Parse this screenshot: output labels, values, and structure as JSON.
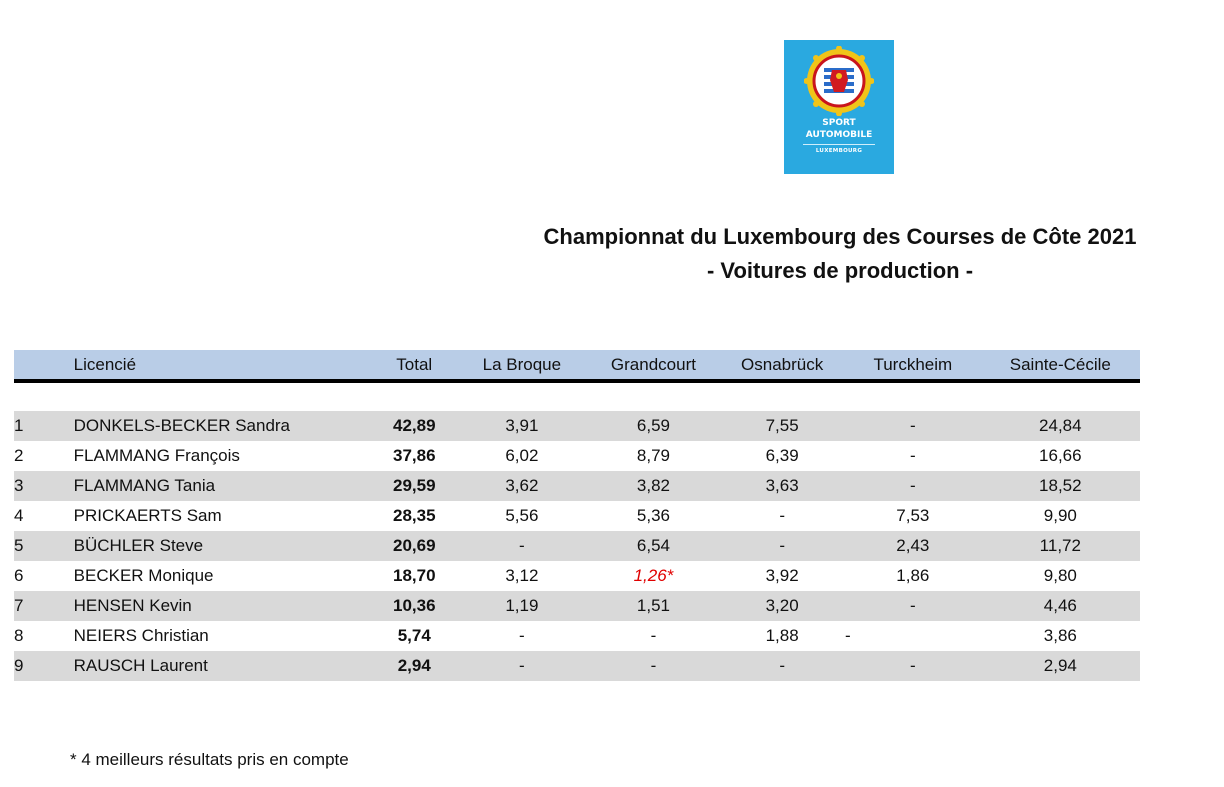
{
  "logo": {
    "line1": "SPORT",
    "line2": "AUTOMOBILE",
    "line3": "LUXEMBOURG"
  },
  "title": {
    "line1": "Championnat du Luxembourg des Courses de Côte 2021",
    "line2": "- Voitures de production -"
  },
  "table": {
    "headers": {
      "rank": "",
      "name": "Licencié",
      "total": "Total",
      "la_broque": "La Broque",
      "grandcourt": "Grandcourt",
      "osnabruck": "Osnabrück",
      "turckheim": "Turckheim",
      "sainte_cecile": "Sainte-Cécile"
    },
    "rows": [
      {
        "rank": "1",
        "name": "DONKELS-BECKER Sandra",
        "total": "42,89",
        "la_broque": "3,91",
        "grandcourt": "6,59",
        "osnabruck": "7,55",
        "turckheim": "-",
        "sainte_cecile": "24,84"
      },
      {
        "rank": "2",
        "name": "FLAMMANG François",
        "total": "37,86",
        "la_broque": "6,02",
        "grandcourt": "8,79",
        "osnabruck": "6,39",
        "turckheim": "-",
        "sainte_cecile": "16,66"
      },
      {
        "rank": "3",
        "name": "FLAMMANG Tania",
        "total": "29,59",
        "la_broque": "3,62",
        "grandcourt": "3,82",
        "osnabruck": "3,63",
        "turckheim": "-",
        "sainte_cecile": "18,52"
      },
      {
        "rank": "4",
        "name": "PRICKAERTS Sam",
        "total": "28,35",
        "la_broque": "5,56",
        "grandcourt": "5,36",
        "osnabruck": "-",
        "turckheim": "7,53",
        "sainte_cecile": "9,90"
      },
      {
        "rank": "5",
        "name": "BÜCHLER Steve",
        "total": "20,69",
        "la_broque": "-",
        "grandcourt": "6,54",
        "osnabruck": "-",
        "turckheim": "2,43",
        "sainte_cecile": "11,72"
      },
      {
        "rank": "6",
        "name": "BECKER Monique",
        "total": "18,70",
        "la_broque": "3,12",
        "grandcourt": "1,26*",
        "osnabruck": "3,92",
        "turckheim": "1,86",
        "sainte_cecile": "9,80"
      },
      {
        "rank": "7",
        "name": "HENSEN Kevin",
        "total": "10,36",
        "la_broque": "1,19",
        "grandcourt": "1,51",
        "osnabruck": "3,20",
        "turckheim": "-",
        "sainte_cecile": "4,46"
      },
      {
        "rank": "8",
        "name": "NEIERS Christian",
        "total": "5,74",
        "la_broque": "-",
        "grandcourt": "-",
        "osnabruck": "1,88",
        "turckheim": "-",
        "sainte_cecile": "3,86"
      },
      {
        "rank": "9",
        "name": "RAUSCH Laurent",
        "total": "2,94",
        "la_broque": "-",
        "grandcourt": "-",
        "osnabruck": "-",
        "turckheim": "-",
        "sainte_cecile": "2,94"
      }
    ]
  },
  "footnote": "* 4 meilleurs résultats pris en compte",
  "colors": {
    "header_bg": "#b9cde7",
    "row_alt_bg": "#d9d9d9",
    "logo_bg": "#2aa9e0",
    "highlight": "#e00000"
  }
}
